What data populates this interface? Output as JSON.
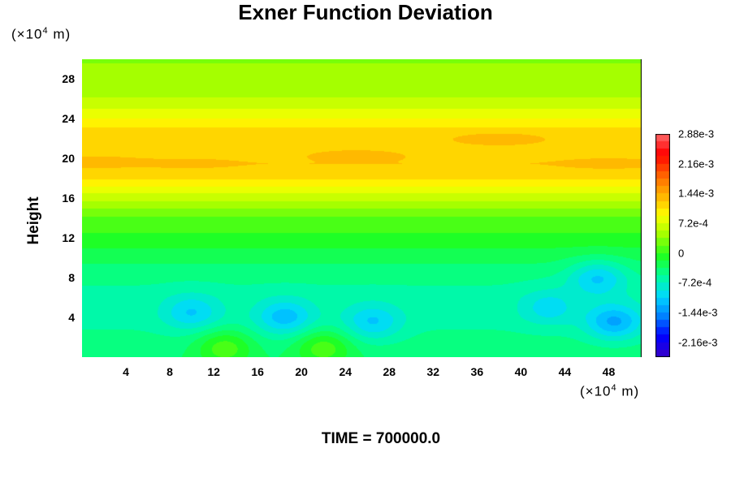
{
  "chart_data": {
    "type": "heatmap",
    "title": "Exner Function Deviation",
    "ylabel": "Height",
    "unit_x": "(×10",
    "unit_y": "(×10",
    "unit_exp": "4",
    "unit_suffix": " m)",
    "xlim": [
      0,
      51
    ],
    "ylim": [
      0,
      30
    ],
    "x_ticks": [
      "4",
      "8",
      "12",
      "16",
      "20",
      "24",
      "28",
      "32",
      "36",
      "40",
      "44",
      "48"
    ],
    "y_ticks": [
      "4",
      "8",
      "12",
      "16",
      "20",
      "24",
      "28"
    ],
    "colorbar": {
      "range": [
        -0.00252,
        0.00288
      ],
      "labels": [
        "2.88e-3",
        "2.16e-3",
        "1.44e-3",
        "7.2e-4",
        "0",
        "-7.2e-4",
        "-1.44e-3",
        "-2.16e-3"
      ],
      "label_values": [
        0.00288,
        0.00216,
        0.00144,
        0.00072,
        0,
        -0.00072,
        -0.00144,
        -0.00216
      ],
      "colors": [
        "#3a00c8",
        "#0000ff",
        "#0080ff",
        "#00d8ff",
        "#00ff9a",
        "#20ff20",
        "#a0ff00",
        "#ffff00",
        "#ffb000",
        "#ff6000",
        "#ff0000",
        "#ff6a6a"
      ]
    },
    "vertical_profile": {
      "heights": [
        0,
        2,
        4,
        6,
        8,
        10,
        12,
        14,
        16,
        18,
        19.5,
        21,
        22.5,
        24,
        26,
        28,
        30
      ],
      "values": [
        -0.0004,
        -0.0005,
        -0.0006,
        -0.0006,
        -0.0005,
        -0.0003,
        -5e-05,
        0.00015,
        0.0006,
        0.0011,
        0.00125,
        0.0011,
        0.0012,
        0.0009,
        0.00055,
        0.0004,
        0.00035
      ]
    },
    "features": [
      {
        "x": 10,
        "y": 4.5,
        "value": -0.0011
      },
      {
        "x": 18.5,
        "y": 4,
        "value": -0.0012
      },
      {
        "x": 26.5,
        "y": 3.5,
        "value": -0.0011
      },
      {
        "x": 42.5,
        "y": 5,
        "value": -0.001
      },
      {
        "x": 48.5,
        "y": 3.5,
        "value": -0.0013
      },
      {
        "x": 47,
        "y": 8,
        "value": -0.0011
      },
      {
        "x": 13,
        "y": 1,
        "value": 0.0001
      },
      {
        "x": 22,
        "y": 1,
        "value": 0.0001
      },
      {
        "x": 25,
        "y": 20.4,
        "value": 0.0014
      },
      {
        "x": 38,
        "y": 21.8,
        "value": 0.0014
      },
      {
        "x": 1,
        "y": 19.7,
        "value": 0.0014
      },
      {
        "x": 10,
        "y": 19.5,
        "value": 0.00135
      },
      {
        "x": 48,
        "y": 19.5,
        "value": 0.00138
      }
    ]
  },
  "footer": "TIME = 700000.0"
}
